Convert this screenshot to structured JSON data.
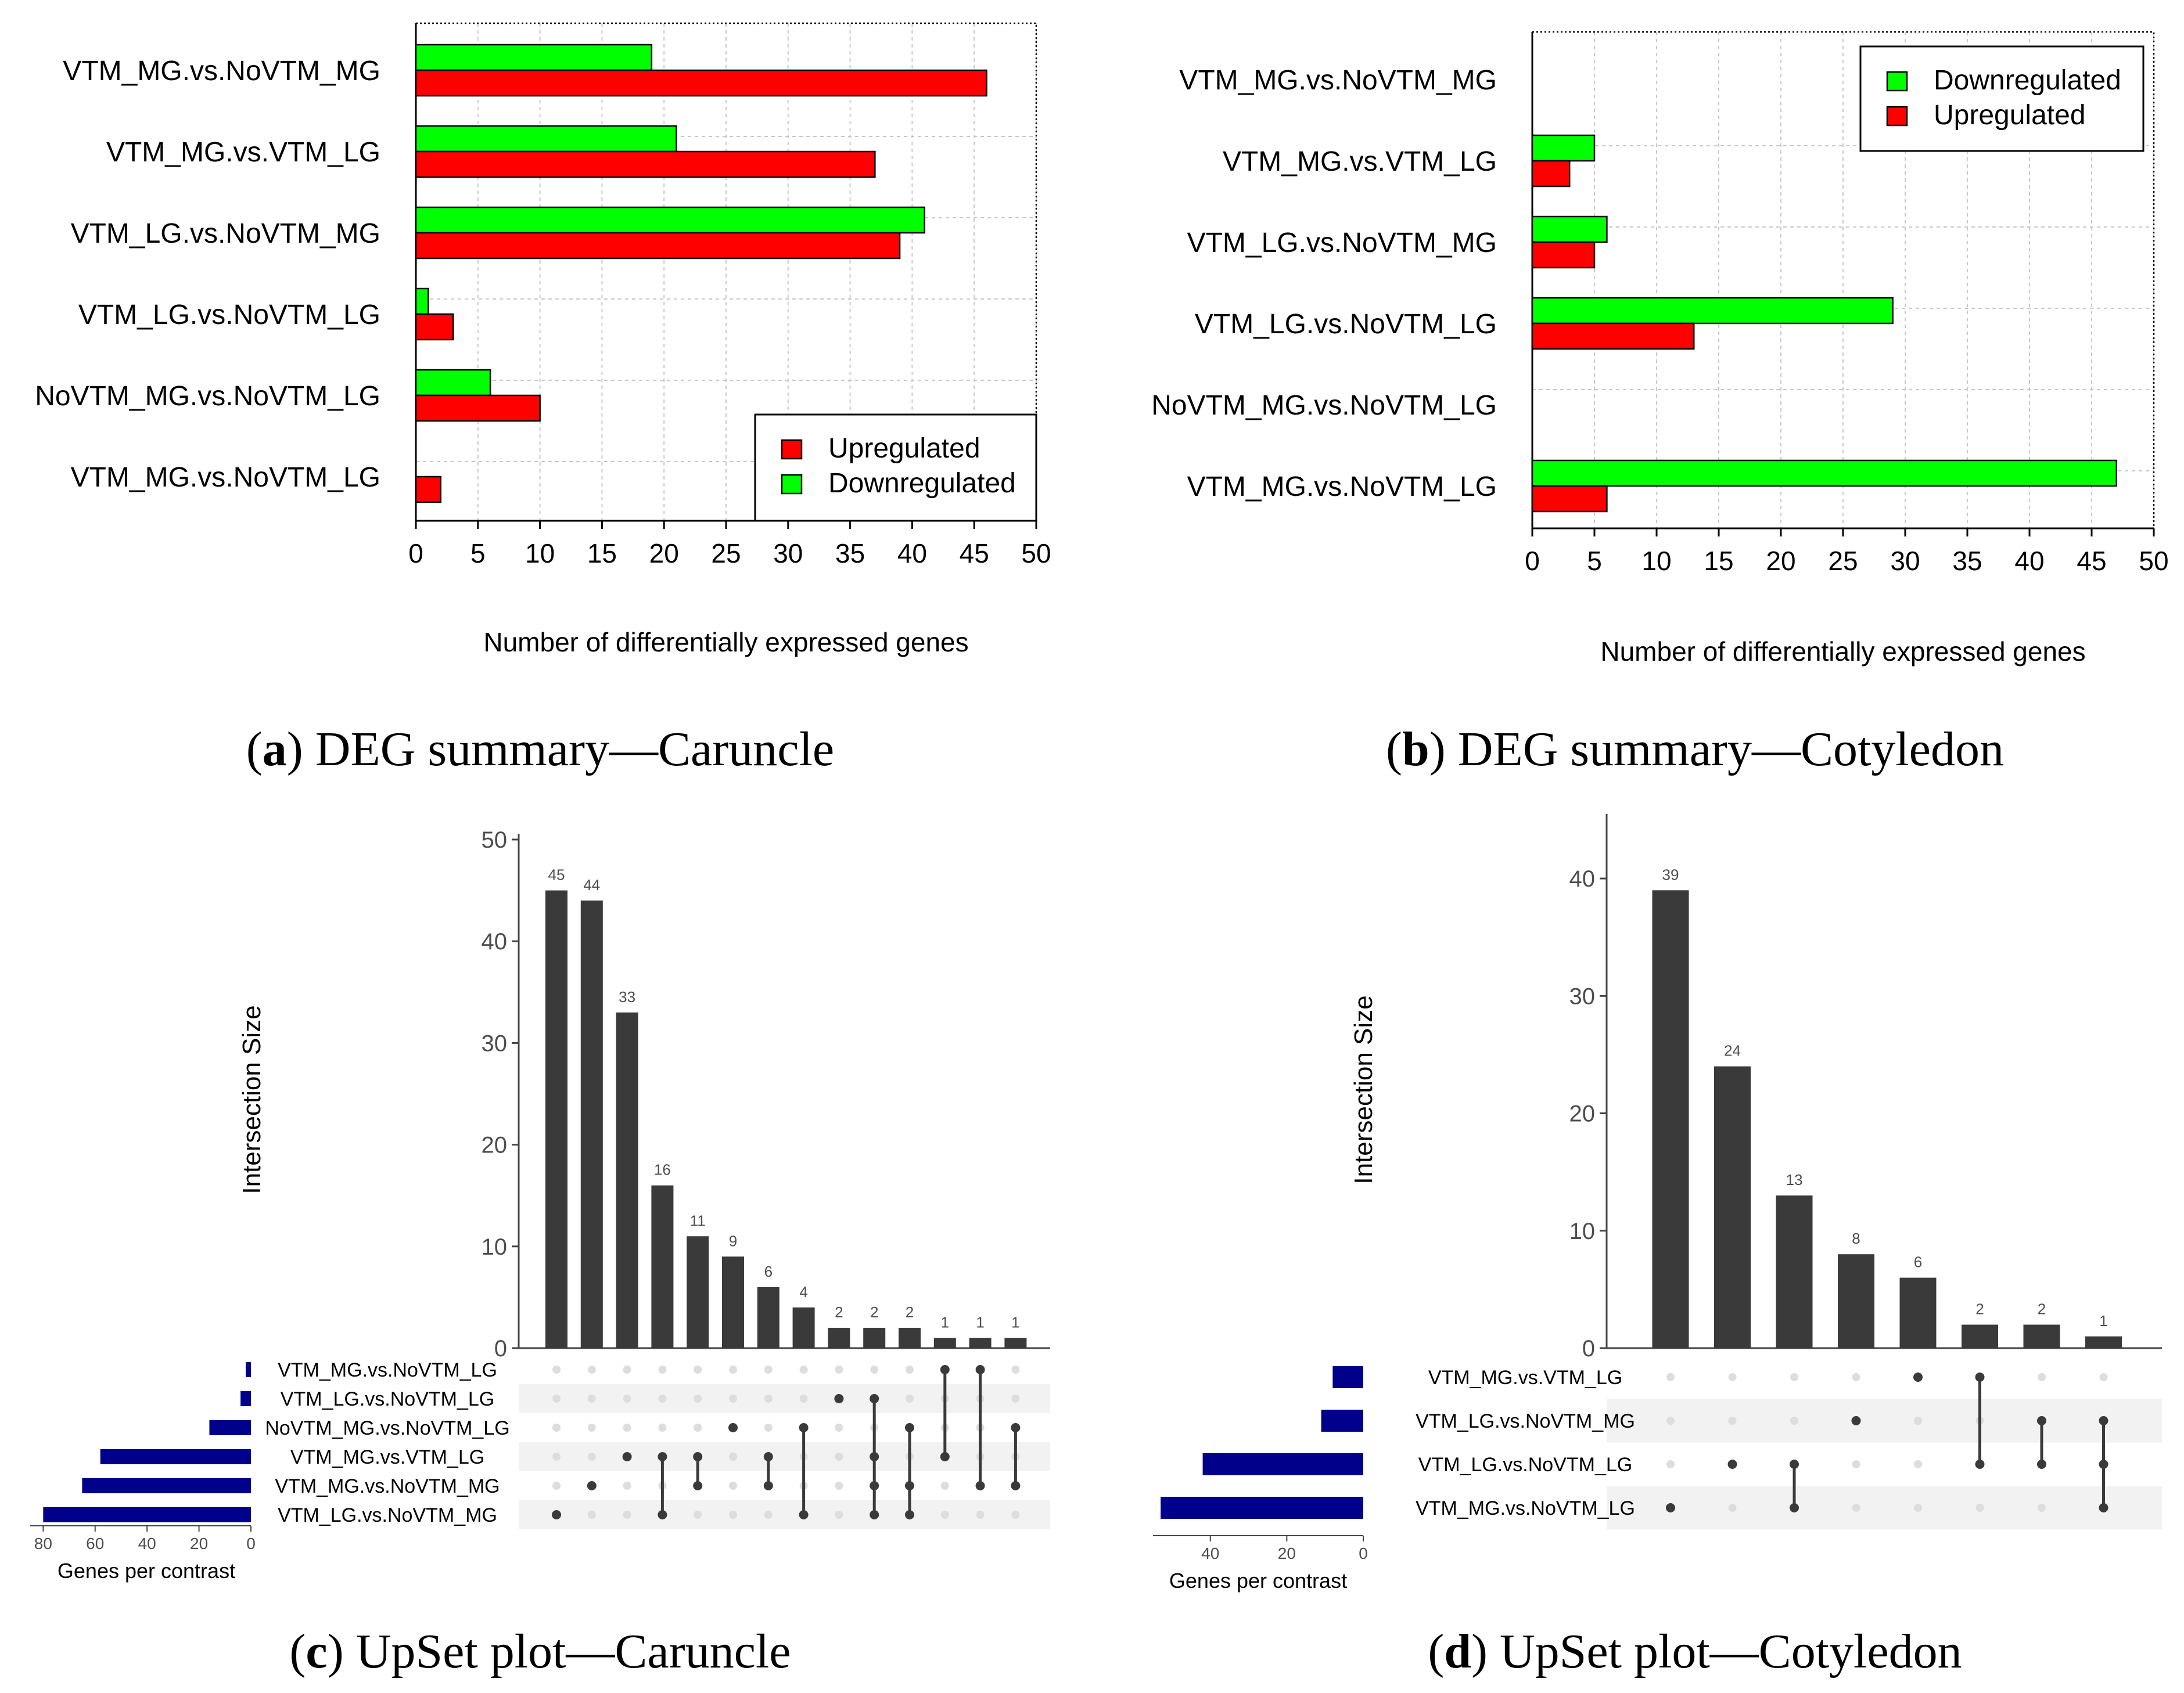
{
  "figure": {
    "captions": [
      {
        "letter": "a",
        "text": " DEG summary—Caruncle"
      },
      {
        "letter": "b",
        "text": " DEG summary—Cotyledon"
      },
      {
        "letter": "c",
        "text": " UpSet plot—Caruncle"
      },
      {
        "letter": "d",
        "text": " UpSet plot—Cotyledon"
      }
    ]
  },
  "colors": {
    "upregulated": "#ff0000",
    "downregulated": "#00ff00",
    "bar_dark": "#3a3a3a",
    "set_bar": "#00008b",
    "dot_off": "#dddddd",
    "stripe": "#f2f2f2"
  },
  "chart_data": [
    {
      "id": "a",
      "type": "bar",
      "orientation": "horizontal",
      "categories": [
        "VTM_MG.vs.NoVTM_MG",
        "VTM_MG.vs.VTM_LG",
        "VTM_LG.vs.NoVTM_MG",
        "VTM_LG.vs.NoVTM_LG",
        "NoVTM_MG.vs.NoVTM_LG",
        "VTM_MG.vs.NoVTM_LG"
      ],
      "series": [
        {
          "name": "Downregulated",
          "values": [
            19,
            21,
            41,
            1,
            6,
            0
          ]
        },
        {
          "name": "Upregulated",
          "values": [
            46,
            37,
            39,
            3,
            10,
            2
          ]
        }
      ],
      "xlabel": "Number of differentially expressed genes",
      "xlim": [
        0,
        50
      ],
      "xticks": [
        "0",
        "5",
        "10",
        "15",
        "20",
        "25",
        "30",
        "35",
        "40",
        "45",
        "50"
      ],
      "legend": [
        "Upregulated",
        "Downregulated"
      ],
      "legend_position": "bottom-right",
      "grid": true
    },
    {
      "id": "b",
      "type": "bar",
      "orientation": "horizontal",
      "categories": [
        "VTM_MG.vs.NoVTM_MG",
        "VTM_MG.vs.VTM_LG",
        "VTM_LG.vs.NoVTM_MG",
        "VTM_LG.vs.NoVTM_LG",
        "NoVTM_MG.vs.NoVTM_LG",
        "VTM_MG.vs.NoVTM_LG"
      ],
      "series": [
        {
          "name": "Downregulated",
          "values": [
            0,
            5,
            6,
            29,
            0,
            47
          ]
        },
        {
          "name": "Upregulated",
          "values": [
            0,
            3,
            5,
            13,
            0,
            6
          ]
        }
      ],
      "xlabel": "Number of differentially expressed genes",
      "xlim": [
        0,
        50
      ],
      "xticks": [
        "0",
        "5",
        "10",
        "15",
        "20",
        "25",
        "30",
        "35",
        "40",
        "45",
        "50"
      ],
      "legend": [
        "Downregulated",
        "Upregulated"
      ],
      "legend_position": "top-right",
      "grid": true
    },
    {
      "id": "c",
      "type": "upset",
      "sets": [
        "VTM_MG.vs.NoVTM_LG",
        "VTM_LG.vs.NoVTM_LG",
        "NoVTM_MG.vs.NoVTM_LG",
        "VTM_MG.vs.VTM_LG",
        "VTM_MG.vs.NoVTM_MG",
        "VTM_LG.vs.NoVTM_MG"
      ],
      "set_sizes": [
        2,
        4,
        16,
        58,
        65,
        80
      ],
      "set_size_xlim": [
        0,
        85
      ],
      "set_size_ticks": [
        "80",
        "60",
        "40",
        "20",
        "0"
      ],
      "set_size_tick_values": [
        80,
        60,
        40,
        20,
        0
      ],
      "set_size_label": "Genes per contrast",
      "intersection_label": "Intersection Size",
      "ylim": [
        0,
        50
      ],
      "yticks": [
        "0",
        "10",
        "20",
        "30",
        "40",
        "50"
      ],
      "intersections": [
        {
          "size": 45,
          "label": "45",
          "members": [
            5
          ]
        },
        {
          "size": 44,
          "label": "44",
          "members": [
            4
          ]
        },
        {
          "size": 33,
          "label": "33",
          "members": [
            3
          ]
        },
        {
          "size": 16,
          "label": "16",
          "members": [
            3,
            5
          ]
        },
        {
          "size": 11,
          "label": "11",
          "members": [
            3,
            4
          ]
        },
        {
          "size": 9,
          "label": "9",
          "members": [
            2
          ]
        },
        {
          "size": 6,
          "label": "6",
          "members": [
            3,
            4
          ]
        },
        {
          "size": 4,
          "label": "4",
          "members": [
            2,
            5
          ]
        },
        {
          "size": 2,
          "label": "2",
          "members": [
            1
          ]
        },
        {
          "size": 2,
          "label": "2",
          "members": [
            1,
            3,
            4,
            5
          ]
        },
        {
          "size": 2,
          "label": "2",
          "members": [
            2,
            4,
            5
          ]
        },
        {
          "size": 1,
          "label": "1",
          "members": [
            0,
            3
          ]
        },
        {
          "size": 1,
          "label": "1",
          "members": [
            0,
            4
          ]
        },
        {
          "size": 1,
          "label": "1",
          "members": [
            2,
            4
          ]
        }
      ]
    },
    {
      "id": "d",
      "type": "upset",
      "sets": [
        "VTM_MG.vs.VTM_LG",
        "VTM_LG.vs.NoVTM_MG",
        "VTM_LG.vs.NoVTM_LG",
        "VTM_MG.vs.NoVTM_LG"
      ],
      "set_sizes": [
        8,
        11,
        42,
        53
      ],
      "set_size_xlim": [
        0,
        55
      ],
      "set_size_ticks": [
        "40",
        "20",
        "0"
      ],
      "set_size_tick_values": [
        40,
        20,
        0
      ],
      "set_size_label": "Genes per contrast",
      "intersection_label": "Intersection Size",
      "ylim": [
        0,
        45
      ],
      "yticks": [
        "0",
        "10",
        "20",
        "30",
        "40"
      ],
      "intersections": [
        {
          "size": 39,
          "label": "39",
          "members": [
            3
          ]
        },
        {
          "size": 24,
          "label": "24",
          "members": [
            2
          ]
        },
        {
          "size": 13,
          "label": "13",
          "members": [
            2,
            3
          ]
        },
        {
          "size": 8,
          "label": "8",
          "members": [
            1
          ]
        },
        {
          "size": 6,
          "label": "6",
          "members": [
            0
          ]
        },
        {
          "size": 2,
          "label": "2",
          "members": [
            0,
            2
          ]
        },
        {
          "size": 2,
          "label": "2",
          "members": [
            1,
            2
          ]
        },
        {
          "size": 1,
          "label": "1",
          "members": [
            1,
            2,
            3
          ]
        }
      ]
    }
  ]
}
